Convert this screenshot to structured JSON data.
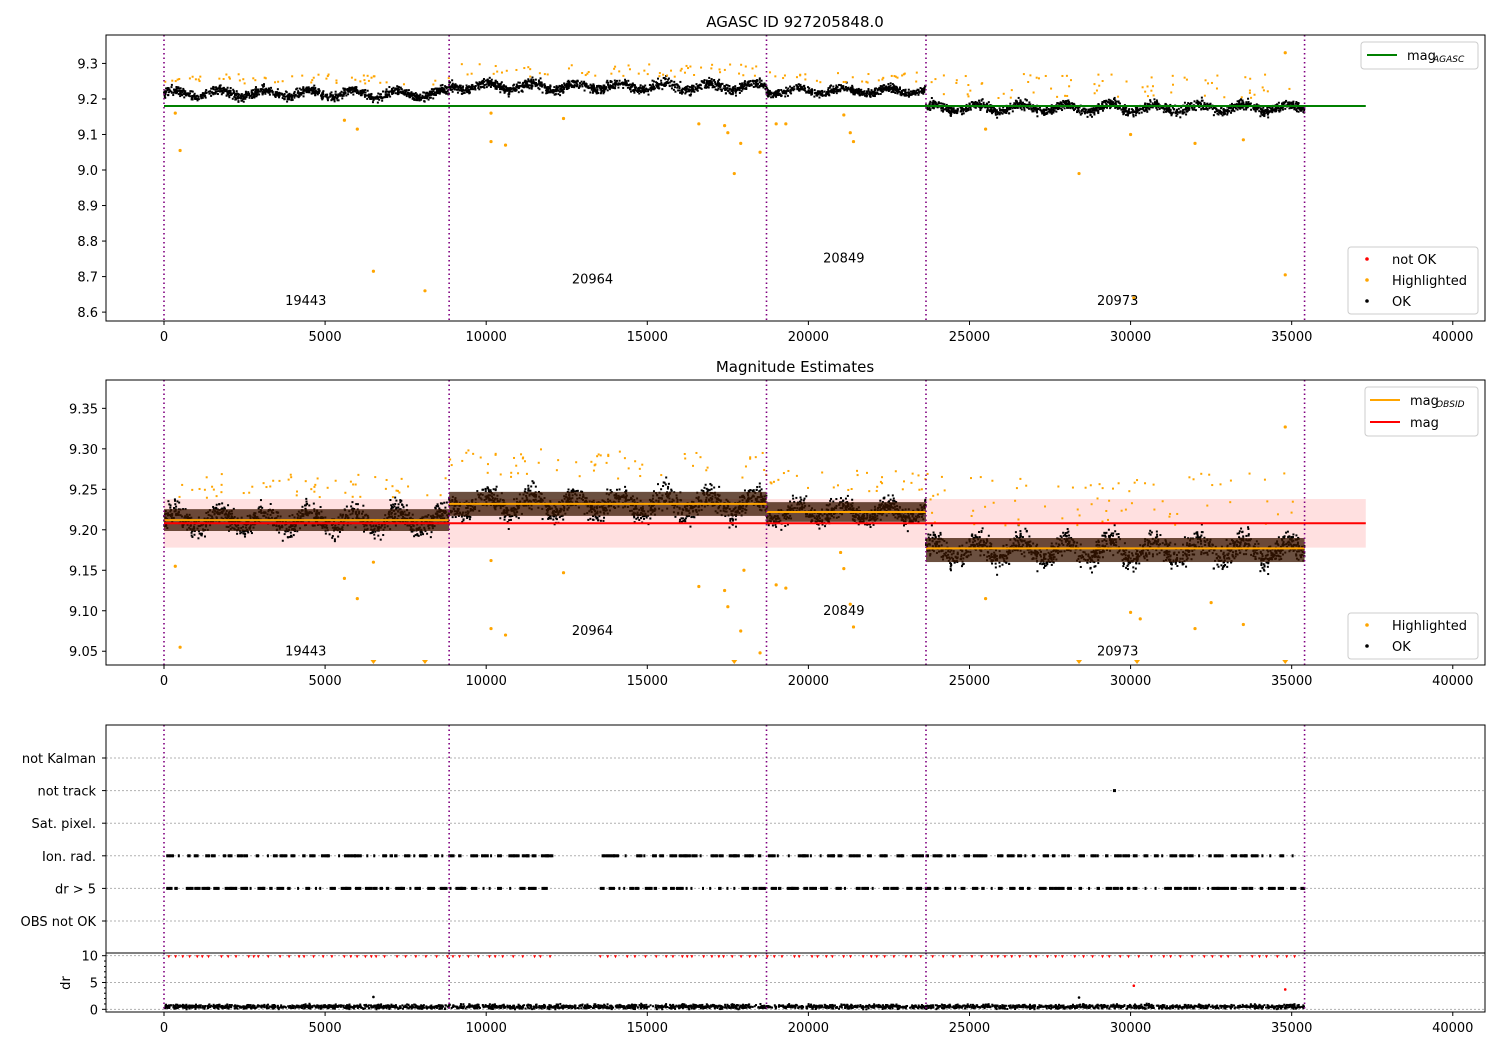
{
  "chart_data": [
    {
      "type": "scatter",
      "title": "AGASC ID 927205848.0",
      "xlim": [
        -1800,
        41000
      ],
      "ylim": [
        8.575,
        9.38
      ],
      "xticks": [
        0,
        5000,
        10000,
        15000,
        20000,
        25000,
        30000,
        35000,
        40000
      ],
      "xtick_labels": [
        "0",
        "5000",
        "10000",
        "15000",
        "20000",
        "25000",
        "30000",
        "35000",
        "40000"
      ],
      "yticks": [
        8.6,
        8.7,
        8.8,
        8.9,
        9.0,
        9.1,
        9.2,
        9.3
      ],
      "ytick_labels": [
        "8.6",
        "8.7",
        "8.8",
        "8.9",
        "9.0",
        "9.1",
        "9.2",
        "9.3"
      ],
      "obs_boundaries": [
        0,
        8850,
        18700,
        23650,
        35400
      ],
      "obs_labels": [
        {
          "x": 4400,
          "y": 8.62,
          "text": "19443"
        },
        {
          "x": 13300,
          "y": 8.68,
          "text": "20964"
        },
        {
          "x": 21100,
          "y": 8.74,
          "text": "20849"
        },
        {
          "x": 29600,
          "y": 8.62,
          "text": "20973"
        }
      ],
      "segments": [
        {
          "x0": 0,
          "x1": 8850,
          "center": 9.215,
          "spread": 0.028,
          "spike_max": 9.27
        },
        {
          "x0": 8850,
          "x1": 18700,
          "center": 9.235,
          "spread": 0.03,
          "spike_max": 9.3
        },
        {
          "x0": 18700,
          "x1": 23650,
          "center": 9.223,
          "spread": 0.025,
          "spike_max": 9.275
        },
        {
          "x0": 23650,
          "x1": 35400,
          "center": 9.175,
          "spread": 0.03,
          "spike_max": 9.27
        }
      ],
      "lines": [
        {
          "name": "mag_AGASC",
          "y": 9.18,
          "x0": 0,
          "x1": 37300,
          "color": "#008000"
        }
      ],
      "outliers": [
        {
          "x": 350,
          "y": 9.16
        },
        {
          "x": 500,
          "y": 9.055
        },
        {
          "x": 5600,
          "y": 9.14
        },
        {
          "x": 6000,
          "y": 9.115
        },
        {
          "x": 6500,
          "y": 8.715
        },
        {
          "x": 8100,
          "y": 8.66
        },
        {
          "x": 10150,
          "y": 9.16
        },
        {
          "x": 10150,
          "y": 9.08
        },
        {
          "x": 10600,
          "y": 9.07
        },
        {
          "x": 12400,
          "y": 9.145
        },
        {
          "x": 16600,
          "y": 9.13
        },
        {
          "x": 17400,
          "y": 9.125
        },
        {
          "x": 17500,
          "y": 9.105
        },
        {
          "x": 17700,
          "y": 8.99
        },
        {
          "x": 17900,
          "y": 9.075
        },
        {
          "x": 18500,
          "y": 9.05
        },
        {
          "x": 19000,
          "y": 9.13
        },
        {
          "x": 19300,
          "y": 9.13
        },
        {
          "x": 21100,
          "y": 9.155
        },
        {
          "x": 21300,
          "y": 9.105
        },
        {
          "x": 21400,
          "y": 9.08
        },
        {
          "x": 25500,
          "y": 9.115
        },
        {
          "x": 28400,
          "y": 8.99
        },
        {
          "x": 30000,
          "y": 9.1
        },
        {
          "x": 30100,
          "y": 8.64
        },
        {
          "x": 32000,
          "y": 9.075
        },
        {
          "x": 33500,
          "y": 9.085
        },
        {
          "x": 34800,
          "y": 8.705
        },
        {
          "x": 34800,
          "y": 9.33
        }
      ],
      "legends": [
        {
          "position": "top-right",
          "entries": [
            {
              "label": "mag",
              "subscript": "AGASC",
              "color": "#008000",
              "kind": "line"
            }
          ]
        },
        {
          "position": "lower-right",
          "entries": [
            {
              "label": "not OK",
              "color": "#ff0000",
              "kind": "dot"
            },
            {
              "label": "Highlighted",
              "color": "#ffa500",
              "kind": "dot"
            },
            {
              "label": "OK",
              "color": "#000000",
              "kind": "dot"
            }
          ]
        }
      ]
    },
    {
      "type": "scatter",
      "title": "Magnitude Estimates",
      "xlim": [
        -1800,
        41000
      ],
      "ylim": [
        9.033,
        9.385
      ],
      "xticks": [
        0,
        5000,
        10000,
        15000,
        20000,
        25000,
        30000,
        35000,
        40000
      ],
      "xtick_labels": [
        "0",
        "5000",
        "10000",
        "15000",
        "20000",
        "25000",
        "30000",
        "35000",
        "40000"
      ],
      "yticks": [
        9.05,
        9.1,
        9.15,
        9.2,
        9.25,
        9.3,
        9.35
      ],
      "ytick_labels": [
        "9.05",
        "9.10",
        "9.15",
        "9.20",
        "9.25",
        "9.30",
        "9.35"
      ],
      "obs_boundaries": [
        0,
        8850,
        18700,
        23650,
        35400
      ],
      "obs_labels": [
        {
          "x": 4400,
          "y": 9.045,
          "text": "19443"
        },
        {
          "x": 13300,
          "y": 9.07,
          "text": "20964"
        },
        {
          "x": 21100,
          "y": 9.095,
          "text": "20849"
        },
        {
          "x": 29600,
          "y": 9.045,
          "text": "20973"
        }
      ],
      "segments": [
        {
          "x0": 0,
          "x1": 8850,
          "center": 9.212,
          "spread": 0.03,
          "spike_max": 9.27
        },
        {
          "x0": 8850,
          "x1": 18700,
          "center": 9.232,
          "spread": 0.033,
          "spike_max": 9.3
        },
        {
          "x0": 18700,
          "x1": 23650,
          "center": 9.222,
          "spread": 0.027,
          "spike_max": 9.275
        },
        {
          "x0": 23650,
          "x1": 35400,
          "center": 9.175,
          "spread": 0.033,
          "spike_max": 9.27
        }
      ],
      "band": {
        "y0": 9.178,
        "y1": 9.238,
        "x0": 0,
        "x1": 37300,
        "color": "#ff0000"
      },
      "lines": [
        {
          "name": "mag",
          "y": 9.208,
          "x0": 0,
          "x1": 37300,
          "color": "#ff0000"
        },
        {
          "name": "mag_OBSID 19443",
          "y": 9.212,
          "x0": 0,
          "x1": 8850,
          "color": "#ffa500"
        },
        {
          "name": "mag_OBSID 20964",
          "y": 9.232,
          "x0": 8850,
          "x1": 18700,
          "color": "#ffa500"
        },
        {
          "name": "mag_OBSID 20849",
          "y": 9.222,
          "x0": 18700,
          "x1": 23650,
          "color": "#ffa500"
        },
        {
          "name": "mag_OBSID 20973",
          "y": 9.177,
          "x0": 23650,
          "x1": 35400,
          "color": "#ffa500"
        }
      ],
      "outliers": [
        {
          "x": 350,
          "y": 9.155
        },
        {
          "x": 500,
          "y": 9.055
        },
        {
          "x": 5600,
          "y": 9.14
        },
        {
          "x": 6000,
          "y": 9.115
        },
        {
          "x": 6500,
          "y": 9.16
        },
        {
          "x": 10150,
          "y": 9.162
        },
        {
          "x": 10150,
          "y": 9.078
        },
        {
          "x": 10600,
          "y": 9.07
        },
        {
          "x": 12400,
          "y": 9.147
        },
        {
          "x": 16600,
          "y": 9.13
        },
        {
          "x": 17400,
          "y": 9.125
        },
        {
          "x": 17500,
          "y": 9.105
        },
        {
          "x": 17900,
          "y": 9.075
        },
        {
          "x": 18000,
          "y": 9.15
        },
        {
          "x": 18500,
          "y": 9.048
        },
        {
          "x": 19000,
          "y": 9.132
        },
        {
          "x": 19300,
          "y": 9.128
        },
        {
          "x": 21000,
          "y": 9.172
        },
        {
          "x": 21100,
          "y": 9.152
        },
        {
          "x": 21300,
          "y": 9.108
        },
        {
          "x": 21400,
          "y": 9.08
        },
        {
          "x": 25500,
          "y": 9.115
        },
        {
          "x": 30000,
          "y": 9.098
        },
        {
          "x": 30300,
          "y": 9.09
        },
        {
          "x": 32000,
          "y": 9.078
        },
        {
          "x": 32500,
          "y": 9.11
        },
        {
          "x": 33500,
          "y": 9.083
        },
        {
          "x": 34800,
          "y": 9.327
        }
      ],
      "clipped_markers": [
        6500,
        8100,
        17700,
        28400,
        30200,
        34800
      ],
      "legends": [
        {
          "position": "top-right",
          "entries": [
            {
              "label": "mag",
              "subscript": "OBSID",
              "color": "#ffa500",
              "kind": "line"
            },
            {
              "label": "mag",
              "subscript": "",
              "color": "#ff0000",
              "kind": "line"
            }
          ]
        },
        {
          "position": "lower-right",
          "entries": [
            {
              "label": "Highlighted",
              "color": "#ffa500",
              "kind": "dot"
            },
            {
              "label": "OK",
              "color": "#000000",
              "kind": "dot"
            }
          ]
        }
      ]
    },
    {
      "type": "scatter",
      "title": "",
      "xlim": [
        -1800,
        41000
      ],
      "categories": [
        "not Kalman",
        "not track",
        "Sat. pixel.",
        "Ion. rad.",
        "dr > 5",
        "OBS not OK"
      ],
      "obs_boundaries": [
        0,
        8850,
        18700,
        23650,
        35400
      ],
      "flag_points": {
        "not track": [
          29500
        ],
        "Ion. rad.": "intermittent 0-12000 and 13500-35400",
        "dr > 5": "intermittent 0-12000 and 13500-35400"
      },
      "gaps": [
        [
          12000,
          13500
        ]
      ]
    },
    {
      "type": "scatter",
      "title": "",
      "ylabel": "dr",
      "xlim": [
        -1800,
        41000
      ],
      "ylim": [
        -0.5,
        10.5
      ],
      "xticks": [
        0,
        5000,
        10000,
        15000,
        20000,
        25000,
        30000,
        35000,
        40000
      ],
      "xtick_labels": [
        "0",
        "5000",
        "10000",
        "15000",
        "20000",
        "25000",
        "30000",
        "35000",
        "40000"
      ],
      "yticks": [
        0,
        5,
        10
      ],
      "ytick_labels": [
        "0",
        "5",
        "10"
      ],
      "obs_boundaries": [
        0,
        8850,
        18700,
        23650,
        35400
      ],
      "dr_baseline": {
        "center": 0.5,
        "spread": 0.4
      },
      "dr_clipped_red": {
        "y": 9.8
      },
      "dr_extra": [
        {
          "x": 6500,
          "y": 2.3,
          "color": "#000000"
        },
        {
          "x": 28400,
          "y": 2.2,
          "color": "#000000"
        },
        {
          "x": 30100,
          "y": 4.4,
          "color": "#ff0000"
        },
        {
          "x": 34800,
          "y": 3.7,
          "color": "#ff0000"
        }
      ]
    }
  ]
}
